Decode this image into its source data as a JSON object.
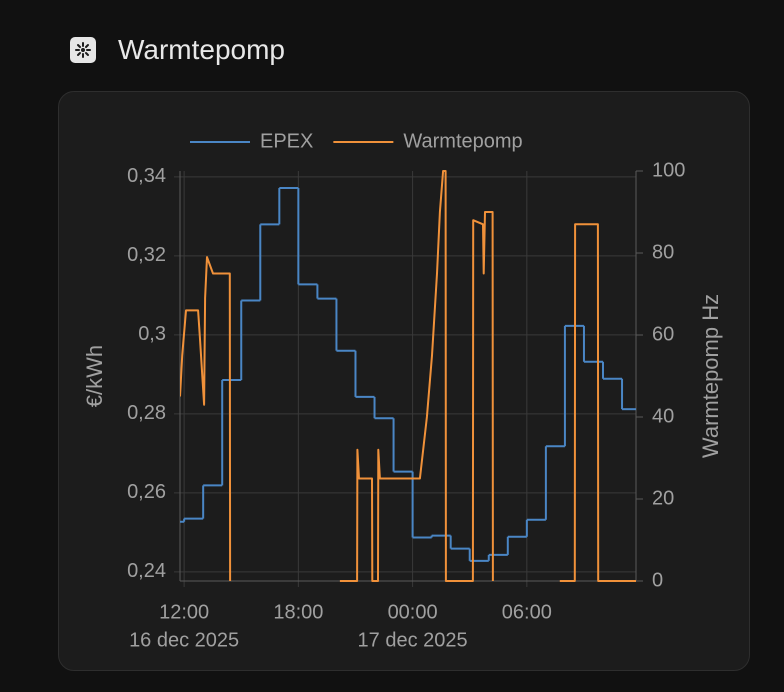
{
  "card": {
    "title": "Warmtepomp"
  },
  "chart_data": {
    "type": "line",
    "y_label": "€/kWh",
    "y2_label": "Warmtepomp Hz",
    "legend": "top",
    "grid": true,
    "xlim": [
      "2025-12-16T11:47",
      "2025-12-17T11:44"
    ],
    "xticks": [
      {
        "value": "2025-12-16T12:00",
        "label": "12:00"
      },
      {
        "value": "2025-12-16T18:00",
        "label": "18:00"
      },
      {
        "value": "2025-12-17T00:00",
        "label": "00:00"
      },
      {
        "value": "2025-12-17T06:00",
        "label": "06:00"
      }
    ],
    "x_date_labels": [
      {
        "value": "2025-12-16T12:00",
        "label": "16 dec 2025"
      },
      {
        "value": "2025-12-17T00:00",
        "label": "17 dec 2025"
      }
    ],
    "ylim": [
      0.2377,
      0.3415
    ],
    "yticks": [
      {
        "value": 0.24,
        "label": "0,24"
      },
      {
        "value": 0.26,
        "label": "0,26"
      },
      {
        "value": 0.28,
        "label": "0,28"
      },
      {
        "value": 0.3,
        "label": "0,3"
      },
      {
        "value": 0.32,
        "label": "0,32"
      },
      {
        "value": 0.34,
        "label": "0,34"
      }
    ],
    "y2lim": [
      0,
      100
    ],
    "y2ticks": [
      0,
      20,
      40,
      60,
      80,
      100
    ],
    "series": [
      {
        "name": "EPEX",
        "color": "#4a86c5",
        "step": "after",
        "x": [
          "2025-12-16T11:00",
          "2025-12-16T12:00",
          "2025-12-16T13:00",
          "2025-12-16T14:00",
          "2025-12-16T15:00",
          "2025-12-16T16:00",
          "2025-12-16T17:00",
          "2025-12-16T18:00",
          "2025-12-16T19:00",
          "2025-12-16T20:00",
          "2025-12-16T21:00",
          "2025-12-16T22:00",
          "2025-12-16T23:00",
          "2025-12-17T00:00",
          "2025-12-17T01:00",
          "2025-12-17T02:00",
          "2025-12-17T03:00",
          "2025-12-17T04:00",
          "2025-12-17T05:00",
          "2025-12-17T06:00",
          "2025-12-17T07:00",
          "2025-12-17T08:00",
          "2025-12-17T09:00",
          "2025-12-17T10:00",
          "2025-12-17T11:00"
        ],
        "values": [
          0.2527,
          0.2535,
          0.2619,
          0.2886,
          0.3087,
          0.328,
          0.3372,
          0.3128,
          0.3092,
          0.296,
          0.2843,
          0.2789,
          0.2654,
          0.2487,
          0.2492,
          0.2459,
          0.2428,
          0.2443,
          0.2489,
          0.2532,
          0.2718,
          0.3023,
          0.2932,
          0.2889,
          0.2812
        ]
      },
      {
        "name": "Warmtepomp",
        "color": "#f0913a",
        "axis": "y2",
        "x": [
          "2025-12-16T11:47",
          "2025-12-16T11:54",
          "2025-12-16T12:06",
          "2025-12-16T12:44",
          "2025-12-16T12:50",
          "2025-12-16T13:03",
          "2025-12-16T13:06",
          "2025-12-16T13:12",
          "2025-12-16T13:31",
          "2025-12-16T14:24",
          "2025-12-16T14:25",
          "2025-12-16T17:00",
          "2025-12-16T20:11",
          "2025-12-16T21:05",
          "2025-12-16T21:06",
          "2025-12-16T21:11",
          "2025-12-16T21:52",
          "2025-12-16T21:53",
          "2025-12-16T22:11",
          "2025-12-16T22:12",
          "2025-12-16T22:17",
          "2025-12-17T00:23",
          "2025-12-17T00:45",
          "2025-12-17T01:01",
          "2025-12-17T01:17",
          "2025-12-17T01:26",
          "2025-12-17T01:36",
          "2025-12-17T01:44",
          "2025-12-17T01:45",
          "2025-12-17T03:10",
          "2025-12-17T03:11",
          "2025-12-17T03:42",
          "2025-12-17T03:44",
          "2025-12-17T03:48",
          "2025-12-17T04:12",
          "2025-12-17T04:13",
          "2025-12-17T06:00",
          "2025-12-17T07:44",
          "2025-12-17T08:31",
          "2025-12-17T08:32",
          "2025-12-17T09:44",
          "2025-12-17T09:45",
          "2025-12-17T11:44"
        ],
        "values": [
          45,
          55,
          66,
          66,
          59,
          43,
          69,
          79,
          75,
          75,
          0,
          null,
          0,
          0,
          32,
          25,
          25,
          0,
          0,
          32,
          25,
          25,
          40,
          55,
          75,
          90,
          100,
          100,
          0,
          0,
          88,
          87,
          75,
          90,
          90,
          0,
          null,
          0,
          0,
          87,
          87,
          0,
          0
        ]
      }
    ]
  }
}
